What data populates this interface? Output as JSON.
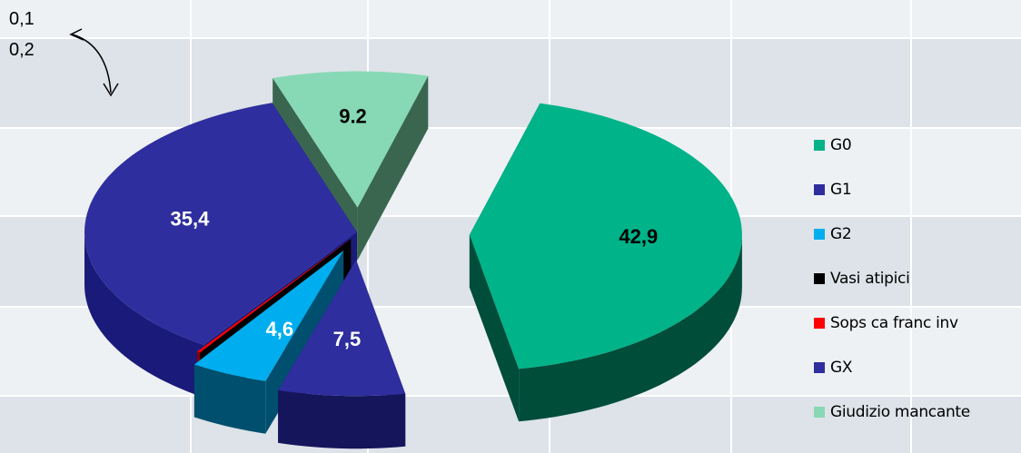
{
  "chart_data": {
    "type": "pie",
    "style": "3d-exploded",
    "slices": [
      {
        "name": "G0",
        "value": 42.9,
        "label": "42,9",
        "color": "#00b388",
        "side": "#004d3a"
      },
      {
        "name": "G1",
        "value": 7.5,
        "label": "7,5",
        "color": "#2e2e9e",
        "side": "#15155c"
      },
      {
        "name": "G2",
        "value": 4.6,
        "label": "4,6",
        "color": "#00aeef",
        "side": "#004f6e"
      },
      {
        "name": "Vasi atipici",
        "value": 0.1,
        "label": "",
        "color": "#000000",
        "side": "#000000"
      },
      {
        "name": "Sops ca franc inv",
        "value": 0.2,
        "label": "",
        "color": "#ff0000",
        "side": "#8a0000"
      },
      {
        "name": "GX",
        "value": 35.4,
        "label": "35,4",
        "color": "#2e2e9e",
        "side": "#1a1a7a"
      },
      {
        "name": "Giudizio mancante",
        "value": 9.2,
        "label": "9.2",
        "color": "#86d9b4",
        "side": "#3a6650"
      }
    ],
    "annotations": [
      "0,1",
      "0,2"
    ],
    "legend": "right",
    "grid": true
  },
  "colors": {
    "background": "#dde3e8",
    "band": "#eef1f4",
    "grid": "#ffffff"
  }
}
